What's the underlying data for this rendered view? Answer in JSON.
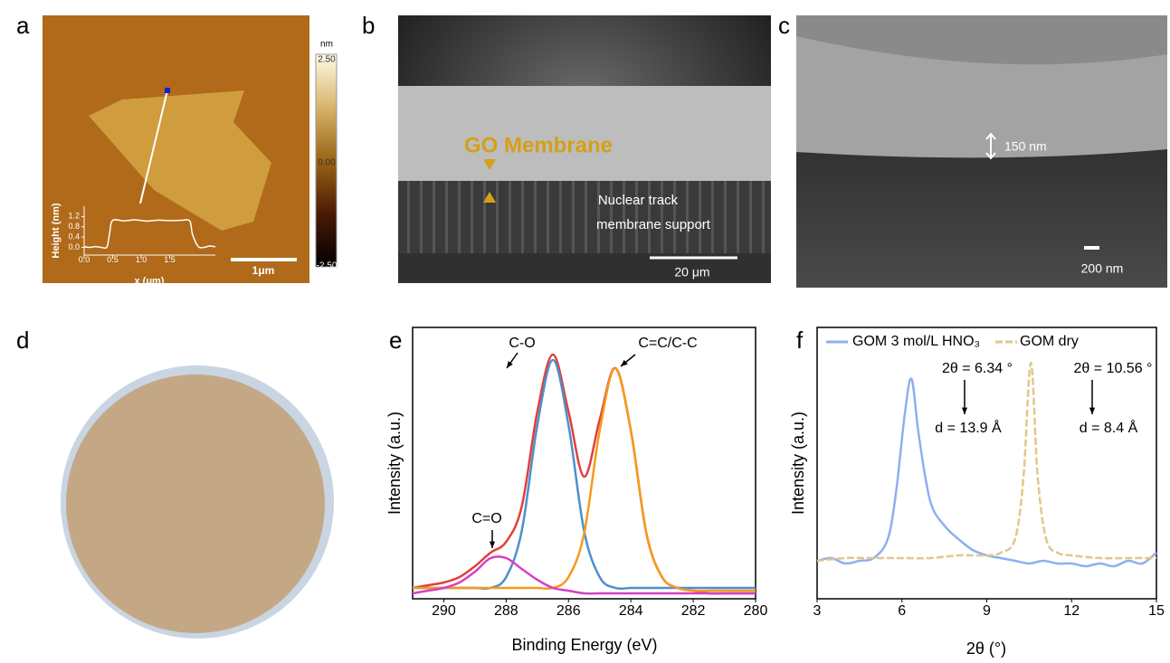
{
  "panel_labels": [
    "a",
    "b",
    "c",
    "d",
    "e",
    "f"
  ],
  "afm": {
    "colorbar": {
      "unit": "nm",
      "lim": [
        -2.5,
        2.5
      ],
      "ticks": [
        {
          "value": 2.5,
          "label": "2.50"
        },
        {
          "value": 0,
          "label": "0.00"
        },
        {
          "value": -2.5,
          "label": "-2.50"
        }
      ]
    },
    "scale_bar": "1μm"
  },
  "sem_cross_section": {
    "membrane_label": "GO Membrane",
    "support_label": [
      "Nuclear track",
      "membrane support"
    ],
    "scale_bar": "20 μm"
  },
  "sem_detail": {
    "thickness_label": "150 nm",
    "scale_bar": "200 nm"
  },
  "chart_data": [
    {
      "type": "line",
      "xlabel": "x (μm)",
      "ylabel": "Height (nm)",
      "color": "#ffffff",
      "x": [
        0,
        0.1,
        0.2,
        0.3,
        0.4,
        0.45,
        0.5,
        0.7,
        0.9,
        1.1,
        1.3,
        1.5,
        1.7,
        1.85,
        1.9,
        2.0,
        2.1,
        2.2,
        2.3
      ],
      "values": [
        0.02,
        0,
        0.03,
        0,
        0.02,
        0.6,
        1.05,
        1.03,
        1.07,
        1.02,
        1.06,
        1.04,
        1.05,
        1.03,
        0.5,
        0.03,
        0,
        0.05,
        0.02
      ],
      "xlim": [
        0,
        2.3
      ],
      "ylim": [
        -0.3,
        1.6
      ],
      "xticks": [
        {
          "value": 0,
          "label": "0.0"
        },
        0.5,
        {
          "value": 1,
          "label": "1.0"
        },
        1.5
      ],
      "yticks": [
        {
          "value": 0,
          "label": "0.0"
        },
        0.4,
        0.8,
        1.2
      ]
    },
    {
      "type": "line",
      "xlabel": "Binding Energy (eV)",
      "ylabel": "Intensity (a.u.)",
      "x": [
        291,
        290.5,
        290,
        289.5,
        289,
        288.5,
        288,
        287.5,
        287,
        286.5,
        286,
        285.5,
        285,
        284.5,
        284,
        283.5,
        283,
        282.5,
        282,
        281.5,
        281,
        280.5,
        280
      ],
      "series": [
        {
          "color": "#e0403a",
          "values": [
            0.04,
            0.05,
            0.06,
            0.08,
            0.12,
            0.17,
            0.21,
            0.34,
            0.69,
            0.9,
            0.69,
            0.45,
            0.66,
            0.85,
            0.62,
            0.24,
            0.08,
            0.04,
            0.03,
            0.02,
            0.02,
            0.02,
            0.02
          ]
        },
        {
          "color": "#4e8fcf",
          "values": [
            0.04,
            0.04,
            0.04,
            0.04,
            0.04,
            0.04,
            0.08,
            0.25,
            0.64,
            0.88,
            0.64,
            0.25,
            0.08,
            0.04,
            0.04,
            0.04,
            0.04,
            0.04,
            0.04,
            0.04,
            0.04,
            0.04,
            0.04
          ]
        },
        {
          "color": "#f59a1c",
          "values": [
            0.04,
            0.04,
            0.04,
            0.04,
            0.04,
            0.04,
            0.04,
            0.04,
            0.04,
            0.04,
            0.08,
            0.24,
            0.62,
            0.85,
            0.62,
            0.24,
            0.08,
            0.04,
            0.03,
            0.03,
            0.03,
            0.03,
            0.03
          ]
        },
        {
          "color": "#d63fc4",
          "values": [
            0.02,
            0.03,
            0.04,
            0.06,
            0.1,
            0.15,
            0.15,
            0.11,
            0.07,
            0.04,
            0.03,
            0.02,
            0.02,
            0.02,
            0.02,
            0.02,
            0.02,
            0.02,
            0.02,
            0.02,
            0.02,
            0.02,
            0.02
          ]
        }
      ],
      "xlim": [
        291,
        280
      ],
      "ylim": [
        0,
        1
      ],
      "xticks": [
        290,
        288,
        286,
        284,
        282,
        280
      ],
      "annotations": [
        "C-O",
        "C=C/C-C",
        "C=O"
      ]
    },
    {
      "type": "line",
      "xlabel": "2θ (°)",
      "ylabel": "Intensity (a.u.)",
      "legend": "top",
      "series": [
        {
          "name": "GOM 3 mol/L HNO₃",
          "color": "#8fb0ec",
          "line_style": "solid",
          "x": [
            3,
            3.5,
            4,
            4.5,
            5,
            5.5,
            5.8,
            6.1,
            6.34,
            6.6,
            7,
            7.5,
            8,
            8.5,
            9,
            9.5,
            10,
            10.5,
            11,
            11.5,
            12,
            12.5,
            13,
            13.5,
            14,
            14.5,
            15
          ],
          "values": [
            0.14,
            0.15,
            0.13,
            0.14,
            0.15,
            0.22,
            0.4,
            0.68,
            0.81,
            0.6,
            0.36,
            0.27,
            0.22,
            0.18,
            0.16,
            0.15,
            0.14,
            0.13,
            0.14,
            0.13,
            0.13,
            0.12,
            0.13,
            0.12,
            0.14,
            0.13,
            0.17
          ]
        },
        {
          "name": "GOM dry",
          "color": "#e0c88a",
          "line_style": "dashed",
          "x": [
            3,
            4,
            5,
            6,
            7,
            8,
            9,
            9.5,
            10,
            10.3,
            10.56,
            10.8,
            11.1,
            11.5,
            12,
            13,
            14,
            15
          ],
          "values": [
            0.14,
            0.15,
            0.15,
            0.15,
            0.15,
            0.16,
            0.16,
            0.17,
            0.22,
            0.45,
            0.87,
            0.45,
            0.22,
            0.17,
            0.16,
            0.15,
            0.15,
            0.15
          ]
        }
      ],
      "xlim": [
        3,
        15
      ],
      "ylim": [
        0,
        1
      ],
      "xticks": [
        3,
        6,
        9,
        12,
        15
      ],
      "annotations": [
        "2θ = 6.34 °",
        "d = 13.9 Å",
        "2θ = 10.56 °",
        "d = 8.4 Å"
      ]
    }
  ]
}
